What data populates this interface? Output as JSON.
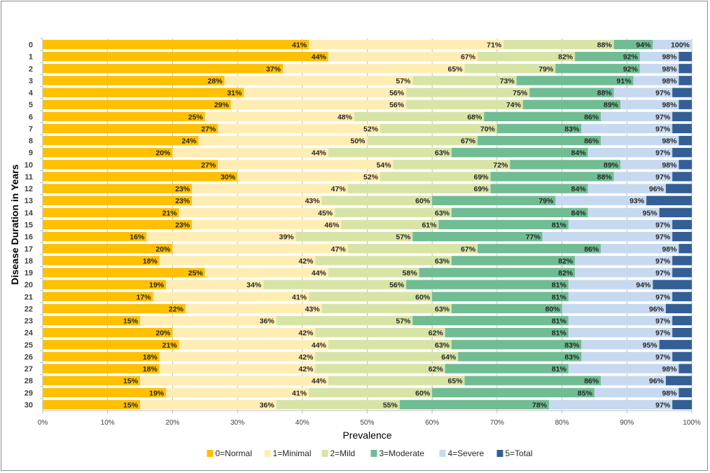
{
  "chart_data": {
    "type": "bar",
    "orientation": "horizontal",
    "stacked": true,
    "label_mode": "cumulative",
    "title": "",
    "xlabel": "Prevalence",
    "ylabel": "Disease Duration in Years",
    "xlim": [
      0,
      100
    ],
    "xticks": [
      "0%",
      "10%",
      "20%",
      "30%",
      "40%",
      "50%",
      "60%",
      "70%",
      "80%",
      "90%",
      "100%"
    ],
    "categories": [
      "0",
      "1",
      "2",
      "3",
      "4",
      "5",
      "6",
      "7",
      "8",
      "9",
      "10",
      "11",
      "12",
      "13",
      "14",
      "15",
      "16",
      "17",
      "18",
      "19",
      "20",
      "21",
      "22",
      "23",
      "24",
      "25",
      "26",
      "27",
      "28",
      "29",
      "30"
    ],
    "legend_position": "bottom",
    "cumulative": [
      [
        41,
        71,
        88,
        94,
        100,
        100
      ],
      [
        44,
        67,
        82,
        92,
        98,
        100
      ],
      [
        37,
        65,
        79,
        92,
        98,
        100
      ],
      [
        28,
        57,
        73,
        91,
        98,
        100
      ],
      [
        31,
        56,
        75,
        88,
        97,
        100
      ],
      [
        29,
        56,
        74,
        89,
        98,
        100
      ],
      [
        25,
        48,
        68,
        86,
        97,
        100
      ],
      [
        27,
        52,
        70,
        83,
        97,
        100
      ],
      [
        24,
        50,
        67,
        86,
        98,
        100
      ],
      [
        20,
        44,
        63,
        84,
        97,
        100
      ],
      [
        27,
        54,
        72,
        89,
        98,
        100
      ],
      [
        30,
        52,
        69,
        88,
        97,
        100
      ],
      [
        23,
        47,
        69,
        84,
        96,
        100
      ],
      [
        23,
        43,
        60,
        79,
        93,
        100
      ],
      [
        21,
        45,
        63,
        84,
        95,
        100
      ],
      [
        23,
        46,
        61,
        81,
        97,
        100
      ],
      [
        16,
        39,
        57,
        77,
        97,
        100
      ],
      [
        20,
        47,
        67,
        86,
        98,
        100
      ],
      [
        18,
        42,
        63,
        82,
        97,
        100
      ],
      [
        25,
        44,
        58,
        82,
        97,
        100
      ],
      [
        19,
        34,
        56,
        81,
        94,
        100
      ],
      [
        17,
        41,
        60,
        81,
        97,
        100
      ],
      [
        22,
        43,
        63,
        80,
        96,
        100
      ],
      [
        15,
        36,
        57,
        81,
        97,
        100
      ],
      [
        20,
        42,
        62,
        81,
        97,
        100
      ],
      [
        21,
        44,
        63,
        83,
        95,
        100
      ],
      [
        18,
        42,
        64,
        83,
        97,
        100
      ],
      [
        18,
        42,
        62,
        81,
        98,
        100
      ],
      [
        15,
        44,
        65,
        86,
        96,
        100
      ],
      [
        19,
        41,
        60,
        85,
        98,
        100
      ],
      [
        15,
        36,
        55,
        78,
        97,
        100
      ]
    ],
    "series": [
      {
        "name": "0=Normal",
        "color": "#FFC000"
      },
      {
        "name": "1=Minimal",
        "color": "#FFEDB3"
      },
      {
        "name": "2=Mild",
        "color": "#D7E4A6"
      },
      {
        "name": "3=Moderate",
        "color": "#70BC93"
      },
      {
        "name": "4=Severe",
        "color": "#C6D9F0"
      },
      {
        "name": "5=Total",
        "color": "#335F96"
      }
    ]
  }
}
